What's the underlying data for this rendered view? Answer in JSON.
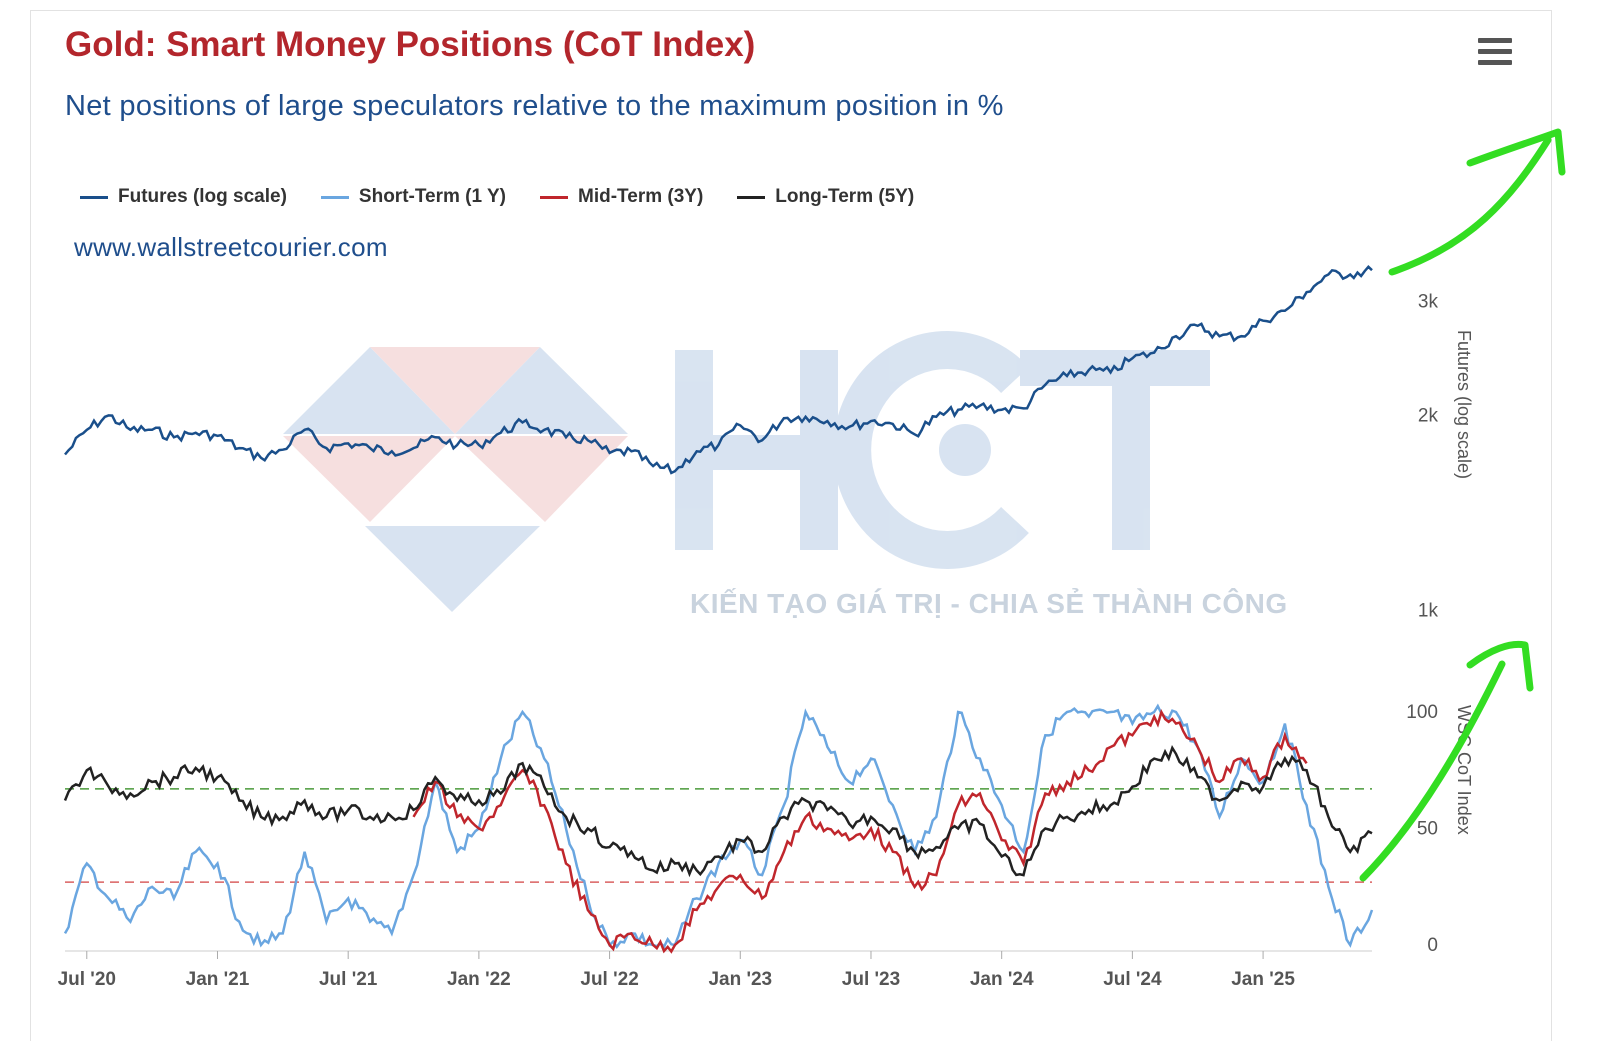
{
  "header": {
    "title": "Gold: Smart Money Positions (CoT Index)",
    "subtitle": "Net positions of large speculators relative to the maximum position in %",
    "credit": "www.wallstreetcourier.com"
  },
  "watermark": {
    "logo_text": "HCT",
    "tagline": "KIẾN TẠO GIÁ TRỊ - CHIA SẺ THÀNH CÔNG"
  },
  "legend": [
    {
      "label": "Futures (log scale)",
      "color": "#1a4f8b"
    },
    {
      "label": "Short-Term (1 Y)",
      "color": "#6aa6e0"
    },
    {
      "label": "Mid-Term (3Y)",
      "color": "#c0262c"
    },
    {
      "label": "Long-Term (5Y)",
      "color": "#222222"
    }
  ],
  "menu_icon": "hamburger-menu-icon",
  "annotation_color": "#33dd22",
  "chart_data": [
    {
      "type": "line",
      "title": "Futures (log scale)",
      "ylabel": "Futures (log scale)",
      "yscale": "log",
      "ylim": [
        900,
        3600
      ],
      "yticks": [
        {
          "value": 1000,
          "label": "1k"
        },
        {
          "value": 2000,
          "label": "2k"
        },
        {
          "value": 3000,
          "label": "3k"
        }
      ],
      "x_range": [
        "2020-06",
        "2025-06"
      ],
      "x_ticks": [
        "Jul '20",
        "Jan '21",
        "Jul '21",
        "Jan '22",
        "Jul '22",
        "Jan '23",
        "Jul '23",
        "Jan '24",
        "Jul '24",
        "Jan '25"
      ],
      "series": [
        {
          "name": "Futures (log scale)",
          "color": "#1a4f8b",
          "points": [
            [
              "2020-06",
              1740
            ],
            [
              "2020-07",
              1900
            ],
            [
              "2020-08",
              2000
            ],
            [
              "2020-09",
              1900
            ],
            [
              "2020-10",
              1900
            ],
            [
              "2020-11",
              1850
            ],
            [
              "2020-12",
              1880
            ],
            [
              "2021-01",
              1860
            ],
            [
              "2021-02",
              1780
            ],
            [
              "2021-03",
              1720
            ],
            [
              "2021-04",
              1770
            ],
            [
              "2021-05",
              1900
            ],
            [
              "2021-06",
              1780
            ],
            [
              "2021-07",
              1810
            ],
            [
              "2021-08",
              1780
            ],
            [
              "2021-09",
              1760
            ],
            [
              "2021-10",
              1780
            ],
            [
              "2021-11",
              1850
            ],
            [
              "2021-12",
              1800
            ],
            [
              "2022-01",
              1800
            ],
            [
              "2022-02",
              1880
            ],
            [
              "2022-03",
              1950
            ],
            [
              "2022-04",
              1900
            ],
            [
              "2022-05",
              1850
            ],
            [
              "2022-06",
              1830
            ],
            [
              "2022-07",
              1750
            ],
            [
              "2022-08",
              1760
            ],
            [
              "2022-09",
              1670
            ],
            [
              "2022-10",
              1640
            ],
            [
              "2022-11",
              1760
            ],
            [
              "2022-12",
              1800
            ],
            [
              "2023-01",
              1930
            ],
            [
              "2023-02",
              1830
            ],
            [
              "2023-03",
              1980
            ],
            [
              "2023-04",
              1990
            ],
            [
              "2023-05",
              1960
            ],
            [
              "2023-06",
              1920
            ],
            [
              "2023-07",
              1960
            ],
            [
              "2023-08",
              1940
            ],
            [
              "2023-09",
              1870
            ],
            [
              "2023-10",
              1990
            ],
            [
              "2023-11",
              2040
            ],
            [
              "2023-12",
              2070
            ],
            [
              "2024-01",
              2040
            ],
            [
              "2024-02",
              2050
            ],
            [
              "2024-03",
              2230
            ],
            [
              "2024-04",
              2300
            ],
            [
              "2024-05",
              2350
            ],
            [
              "2024-06",
              2330
            ],
            [
              "2024-07",
              2450
            ],
            [
              "2024-08",
              2500
            ],
            [
              "2024-09",
              2650
            ],
            [
              "2024-10",
              2750
            ],
            [
              "2024-11",
              2650
            ],
            [
              "2024-12",
              2650
            ],
            [
              "2025-01",
              2800
            ],
            [
              "2025-02",
              2900
            ],
            [
              "2025-03",
              3100
            ],
            [
              "2025-04",
              3300
            ],
            [
              "2025-05",
              3300
            ],
            [
              "2025-06",
              3350
            ]
          ]
        }
      ]
    },
    {
      "type": "line",
      "title": "CoT Index",
      "ylabel": "WSC CoT Index",
      "ylim": [
        0,
        100
      ],
      "yticks": [
        0,
        50,
        100
      ],
      "reference_lines": [
        {
          "value": 67,
          "color": "#4a9a3a",
          "style": "dashed"
        },
        {
          "value": 27,
          "color": "#d96060",
          "style": "dashed"
        }
      ],
      "x_range": [
        "2020-06",
        "2025-06"
      ],
      "x_ticks": [
        "Jul '20",
        "Jan '21",
        "Jul '21",
        "Jan '22",
        "Jul '22",
        "Jan '23",
        "Jul '23",
        "Jan '24",
        "Jul '24",
        "Jan '25"
      ],
      "series": [
        {
          "name": "Short-Term (1 Y)",
          "color": "#6aa6e0",
          "points": [
            [
              "2020-06",
              5
            ],
            [
              "2020-07",
              35
            ],
            [
              "2020-08",
              20
            ],
            [
              "2020-09",
              10
            ],
            [
              "2020-10",
              25
            ],
            [
              "2020-11",
              20
            ],
            [
              "2020-12",
              40
            ],
            [
              "2021-01",
              35
            ],
            [
              "2021-02",
              10
            ],
            [
              "2021-03",
              0
            ],
            [
              "2021-04",
              5
            ],
            [
              "2021-05",
              40
            ],
            [
              "2021-06",
              10
            ],
            [
              "2021-07",
              20
            ],
            [
              "2021-08",
              10
            ],
            [
              "2021-09",
              5
            ],
            [
              "2021-10",
              30
            ],
            [
              "2021-11",
              70
            ],
            [
              "2021-12",
              40
            ],
            [
              "2022-01",
              50
            ],
            [
              "2022-02",
              80
            ],
            [
              "2022-03",
              100
            ],
            [
              "2022-04",
              80
            ],
            [
              "2022-05",
              50
            ],
            [
              "2022-06",
              20
            ],
            [
              "2022-07",
              0
            ],
            [
              "2022-08",
              5
            ],
            [
              "2022-09",
              0
            ],
            [
              "2022-10",
              0
            ],
            [
              "2022-11",
              20
            ],
            [
              "2022-12",
              35
            ],
            [
              "2023-01",
              45
            ],
            [
              "2023-02",
              30
            ],
            [
              "2023-03",
              60
            ],
            [
              "2023-04",
              100
            ],
            [
              "2023-05",
              85
            ],
            [
              "2023-06",
              70
            ],
            [
              "2023-07",
              80
            ],
            [
              "2023-08",
              60
            ],
            [
              "2023-09",
              40
            ],
            [
              "2023-10",
              55
            ],
            [
              "2023-11",
              100
            ],
            [
              "2023-12",
              80
            ],
            [
              "2024-01",
              60
            ],
            [
              "2024-02",
              40
            ],
            [
              "2024-03",
              90
            ],
            [
              "2024-04",
              100
            ],
            [
              "2024-05",
              98
            ],
            [
              "2024-06",
              100
            ],
            [
              "2024-07",
              95
            ],
            [
              "2024-08",
              100
            ],
            [
              "2024-09",
              100
            ],
            [
              "2024-10",
              85
            ],
            [
              "2024-11",
              55
            ],
            [
              "2024-12",
              80
            ],
            [
              "2025-01",
              70
            ],
            [
              "2025-02",
              95
            ],
            [
              "2025-03",
              60
            ],
            [
              "2025-04",
              25
            ],
            [
              "2025-05",
              0
            ],
            [
              "2025-06",
              15
            ]
          ]
        },
        {
          "name": "Mid-Term (3Y)",
          "color": "#c0262c",
          "points": [
            [
              "2021-10",
              55
            ],
            [
              "2021-11",
              70
            ],
            [
              "2021-12",
              55
            ],
            [
              "2022-01",
              50
            ],
            [
              "2022-02",
              60
            ],
            [
              "2022-03",
              75
            ],
            [
              "2022-04",
              60
            ],
            [
              "2022-05",
              35
            ],
            [
              "2022-06",
              15
            ],
            [
              "2022-07",
              0
            ],
            [
              "2022-08",
              5
            ],
            [
              "2022-09",
              0
            ],
            [
              "2022-10",
              0
            ],
            [
              "2022-11",
              15
            ],
            [
              "2022-12",
              25
            ],
            [
              "2023-01",
              30
            ],
            [
              "2023-02",
              20
            ],
            [
              "2023-03",
              40
            ],
            [
              "2023-04",
              55
            ],
            [
              "2023-05",
              50
            ],
            [
              "2023-06",
              45
            ],
            [
              "2023-07",
              50
            ],
            [
              "2023-08",
              40
            ],
            [
              "2023-09",
              25
            ],
            [
              "2023-10",
              30
            ],
            [
              "2023-11",
              60
            ],
            [
              "2023-12",
              65
            ],
            [
              "2024-01",
              45
            ],
            [
              "2024-02",
              35
            ],
            [
              "2024-03",
              65
            ],
            [
              "2024-04",
              70
            ],
            [
              "2024-05",
              75
            ],
            [
              "2024-06",
              85
            ],
            [
              "2024-07",
              90
            ],
            [
              "2024-08",
              98
            ],
            [
              "2024-09",
              95
            ],
            [
              "2024-10",
              85
            ],
            [
              "2024-11",
              70
            ],
            [
              "2024-12",
              80
            ],
            [
              "2025-01",
              72
            ],
            [
              "2025-02",
              90
            ],
            [
              "2025-03",
              78
            ]
          ]
        },
        {
          "name": "Long-Term (5Y)",
          "color": "#222222",
          "points": [
            [
              "2020-06",
              62
            ],
            [
              "2020-07",
              75
            ],
            [
              "2020-08",
              68
            ],
            [
              "2020-09",
              65
            ],
            [
              "2020-10",
              70
            ],
            [
              "2020-11",
              72
            ],
            [
              "2020-12",
              76
            ],
            [
              "2021-01",
              72
            ],
            [
              "2021-02",
              62
            ],
            [
              "2021-03",
              55
            ],
            [
              "2021-04",
              55
            ],
            [
              "2021-05",
              62
            ],
            [
              "2021-06",
              55
            ],
            [
              "2021-07",
              58
            ],
            [
              "2021-08",
              55
            ],
            [
              "2021-09",
              55
            ],
            [
              "2021-10",
              58
            ],
            [
              "2021-11",
              72
            ],
            [
              "2021-12",
              62
            ],
            [
              "2022-01",
              62
            ],
            [
              "2022-02",
              65
            ],
            [
              "2022-03",
              78
            ],
            [
              "2022-04",
              68
            ],
            [
              "2022-05",
              55
            ],
            [
              "2022-06",
              50
            ],
            [
              "2022-07",
              42
            ],
            [
              "2022-08",
              40
            ],
            [
              "2022-09",
              32
            ],
            [
              "2022-10",
              35
            ],
            [
              "2022-11",
              32
            ],
            [
              "2022-12",
              38
            ],
            [
              "2023-01",
              45
            ],
            [
              "2023-02",
              40
            ],
            [
              "2023-03",
              55
            ],
            [
              "2023-04",
              62
            ],
            [
              "2023-05",
              58
            ],
            [
              "2023-06",
              52
            ],
            [
              "2023-07",
              55
            ],
            [
              "2023-08",
              50
            ],
            [
              "2023-09",
              40
            ],
            [
              "2023-10",
              42
            ],
            [
              "2023-11",
              50
            ],
            [
              "2023-12",
              52
            ],
            [
              "2024-01",
              38
            ],
            [
              "2024-02",
              30
            ],
            [
              "2024-03",
              50
            ],
            [
              "2024-04",
              55
            ],
            [
              "2024-05",
              58
            ],
            [
              "2024-06",
              60
            ],
            [
              "2024-07",
              68
            ],
            [
              "2024-08",
              80
            ],
            [
              "2024-09",
              82
            ],
            [
              "2024-10",
              72
            ],
            [
              "2024-11",
              62
            ],
            [
              "2024-12",
              70
            ],
            [
              "2025-01",
              68
            ],
            [
              "2025-02",
              80
            ],
            [
              "2025-03",
              75
            ],
            [
              "2025-04",
              55
            ],
            [
              "2025-05",
              40
            ],
            [
              "2025-06",
              48
            ]
          ]
        }
      ]
    }
  ]
}
